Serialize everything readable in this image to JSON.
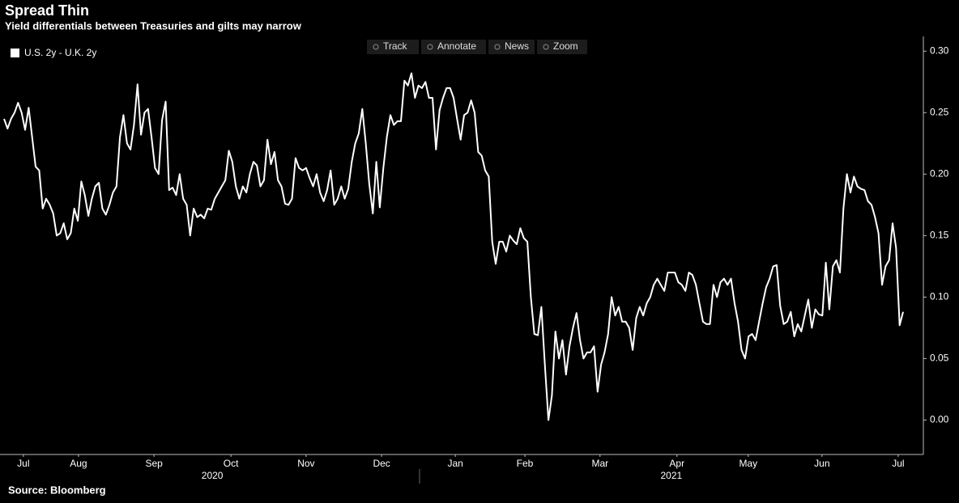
{
  "chart_data": {
    "type": "line",
    "title": "Spread Thin",
    "subtitle": "Yield differentials between Treasuries and gilts may narrow",
    "source": "Source: Bloomberg",
    "series": [
      {
        "name": "U.S. 2y - U.K. 2y",
        "color": "#ffffff",
        "values": [
          0.245,
          0.237,
          0.245,
          0.25,
          0.258,
          0.25,
          0.236,
          0.254,
          0.23,
          0.206,
          0.203,
          0.172,
          0.18,
          0.175,
          0.168,
          0.15,
          0.152,
          0.16,
          0.147,
          0.152,
          0.172,
          0.162,
          0.194,
          0.183,
          0.166,
          0.18,
          0.19,
          0.193,
          0.172,
          0.167,
          0.175,
          0.185,
          0.19,
          0.23,
          0.248,
          0.225,
          0.22,
          0.24,
          0.273,
          0.232,
          0.25,
          0.253,
          0.23,
          0.205,
          0.2,
          0.244,
          0.259,
          0.187,
          0.189,
          0.183,
          0.2,
          0.18,
          0.175,
          0.15,
          0.172,
          0.165,
          0.167,
          0.164,
          0.172,
          0.171,
          0.18,
          0.185,
          0.19,
          0.195,
          0.219,
          0.21,
          0.19,
          0.18,
          0.19,
          0.185,
          0.2,
          0.21,
          0.207,
          0.19,
          0.195,
          0.228,
          0.208,
          0.218,
          0.195,
          0.19,
          0.176,
          0.175,
          0.18,
          0.213,
          0.205,
          0.203,
          0.205,
          0.197,
          0.19,
          0.2,
          0.185,
          0.178,
          0.187,
          0.203,
          0.175,
          0.18,
          0.19,
          0.18,
          0.188,
          0.21,
          0.225,
          0.233,
          0.253,
          0.225,
          0.192,
          0.168,
          0.21,
          0.173,
          0.205,
          0.23,
          0.248,
          0.24,
          0.243,
          0.243,
          0.276,
          0.272,
          0.282,
          0.262,
          0.272,
          0.27,
          0.275,
          0.262,
          0.262,
          0.22,
          0.252,
          0.262,
          0.27,
          0.27,
          0.262,
          0.245,
          0.228,
          0.248,
          0.25,
          0.26,
          0.25,
          0.218,
          0.215,
          0.203,
          0.198,
          0.145,
          0.127,
          0.145,
          0.145,
          0.137,
          0.15,
          0.146,
          0.143,
          0.156,
          0.148,
          0.145,
          0.1,
          0.07,
          0.069,
          0.092,
          0.045,
          0.0,
          0.02,
          0.072,
          0.05,
          0.065,
          0.037,
          0.06,
          0.075,
          0.087,
          0.065,
          0.05,
          0.055,
          0.055,
          0.06,
          0.023,
          0.045,
          0.055,
          0.07,
          0.1,
          0.085,
          0.092,
          0.08,
          0.08,
          0.075,
          0.057,
          0.083,
          0.092,
          0.085,
          0.095,
          0.1,
          0.11,
          0.115,
          0.11,
          0.105,
          0.12,
          0.12,
          0.12,
          0.112,
          0.11,
          0.105,
          0.12,
          0.118,
          0.11,
          0.095,
          0.08,
          0.078,
          0.078,
          0.11,
          0.1,
          0.112,
          0.115,
          0.11,
          0.115,
          0.095,
          0.08,
          0.057,
          0.05,
          0.068,
          0.07,
          0.065,
          0.08,
          0.095,
          0.108,
          0.115,
          0.125,
          0.126,
          0.093,
          0.078,
          0.08,
          0.088,
          0.068,
          0.078,
          0.072,
          0.085,
          0.098,
          0.075,
          0.09,
          0.086,
          0.085,
          0.128,
          0.09,
          0.125,
          0.13,
          0.12,
          0.172,
          0.2,
          0.185,
          0.198,
          0.19,
          0.188,
          0.187,
          0.178,
          0.175,
          0.165,
          0.152,
          0.11,
          0.125,
          0.13,
          0.16,
          0.14,
          0.077,
          0.088
        ]
      }
    ],
    "xlim": [
      0,
      256
    ],
    "xticks": [
      {
        "value": 5.5,
        "label": "Jul"
      },
      {
        "value": 21.2,
        "label": "Aug"
      },
      {
        "value": 42.7,
        "label": "Sep"
      },
      {
        "value": 64.6,
        "label": "Oct"
      },
      {
        "value": 86.0,
        "label": "Nov"
      },
      {
        "value": 107.5,
        "label": "Dec"
      },
      {
        "value": 128.5,
        "label": "Jan"
      },
      {
        "value": 148.3,
        "label": "Feb"
      },
      {
        "value": 169.7,
        "label": "Mar"
      },
      {
        "value": 191.6,
        "label": "Apr"
      },
      {
        "value": 211.9,
        "label": "May"
      },
      {
        "value": 232.9,
        "label": "Jun"
      },
      {
        "value": 254.6,
        "label": "Jul"
      }
    ],
    "xgroups": [
      {
        "value": 59.3,
        "label": "2020"
      },
      {
        "value": 190.0,
        "label": "2021"
      }
    ],
    "ylim": [
      -0.028,
      0.312
    ],
    "yticks": [
      {
        "value": 0,
        "label": "0.00"
      },
      {
        "value": 0.05,
        "label": "0.05"
      },
      {
        "value": 0.1,
        "label": "0.10"
      },
      {
        "value": 0.15,
        "label": "0.15"
      },
      {
        "value": 0.2,
        "label": "0.20"
      },
      {
        "value": 0.25,
        "label": "0.25"
      },
      {
        "value": 0.3,
        "label": "0.30"
      }
    ],
    "y_axis_side": "right",
    "legend": "top-left"
  },
  "toolbar": [
    "Track",
    "Annotate",
    "News",
    "Zoom"
  ]
}
